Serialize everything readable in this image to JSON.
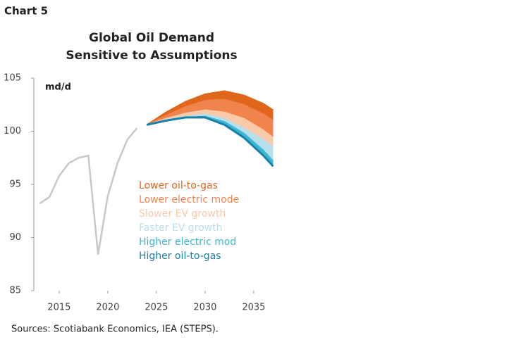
{
  "chart_label": "Chart 5",
  "source": "Sources: Scotiabank Economics, IEA (STEPS).",
  "chart_data": {
    "type": "line",
    "title": "Global Oil Demand",
    "subtitle": "Sensitive to Assumptions",
    "y_label": "md/d",
    "xlim": [
      2012.4,
      2037.4
    ],
    "xticks": [
      2015,
      2020,
      2025,
      2030,
      2035
    ],
    "ylim": [
      85,
      105
    ],
    "yticks": [
      85,
      90,
      95,
      100,
      105
    ],
    "history": {
      "color": "#c8c8c8",
      "x": [
        2013,
        2014,
        2015,
        2016,
        2017,
        2018,
        2019,
        2020,
        2021,
        2022,
        2023
      ],
      "values": [
        93.2,
        93.8,
        95.8,
        97.0,
        97.5,
        97.7,
        88.4,
        93.9,
        97.0,
        99.2,
        100.3
      ]
    },
    "scenario_x": [
      2024,
      2026,
      2028,
      2030,
      2032,
      2034,
      2036,
      2037
    ],
    "series": [
      {
        "name": "Lower oil-to-gas",
        "color": "#e0661c",
        "values": [
          100.6,
          101.8,
          102.8,
          103.5,
          103.8,
          103.4,
          102.6,
          102.0
        ]
      },
      {
        "name": "Lower electric mode",
        "color": "#f0844c",
        "values": [
          100.6,
          101.5,
          102.3,
          102.9,
          103.0,
          102.5,
          101.6,
          101.0
        ]
      },
      {
        "name": "Slower EV growth",
        "color": "#f9c9a8",
        "values": [
          100.6,
          101.2,
          101.7,
          102.0,
          101.8,
          101.2,
          100.1,
          99.4
        ]
      },
      {
        "name": "Faster EV growth",
        "color": "#b8e0ec",
        "values": [
          100.6,
          101.1,
          101.4,
          101.6,
          101.2,
          100.3,
          99.2,
          98.5
        ]
      },
      {
        "name": "Higher electric mod",
        "color": "#3cb8d4",
        "values": [
          100.6,
          101.0,
          101.3,
          101.4,
          100.9,
          99.8,
          98.2,
          97.2
        ]
      },
      {
        "name": "Higher oil-to-gas",
        "color": "#1a7fa6",
        "values": [
          100.6,
          101.0,
          101.3,
          101.3,
          100.6,
          99.4,
          97.7,
          96.7
        ]
      }
    ]
  }
}
